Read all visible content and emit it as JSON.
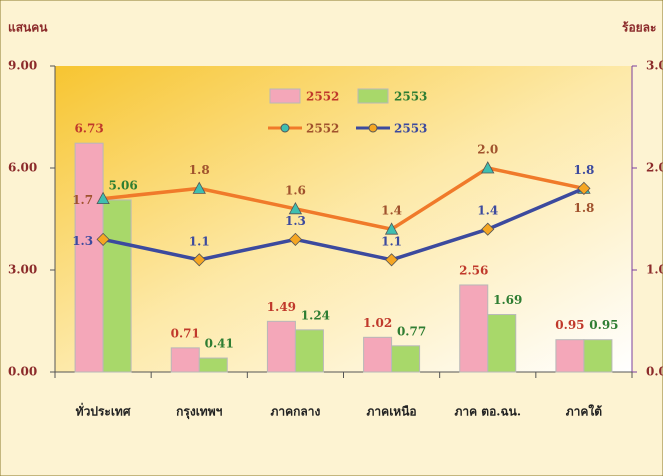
{
  "chart_data": {
    "type": "bar-line",
    "ylabel": "แสนคน",
    "y2label": "ร้อยละ",
    "categories": [
      "ทั่วประเทศ",
      "กรุงเทพฯ",
      "ภาคกลาง",
      "ภาคเหนือ",
      "ภาค ตอ.ฉน.",
      "ภาคใต้"
    ],
    "series": [
      {
        "name": "2552",
        "type": "bar",
        "color": "#f4a7b9",
        "label_color": "#c0392b",
        "values": [
          6.73,
          0.71,
          1.49,
          1.02,
          2.56,
          0.95
        ]
      },
      {
        "name": "2553",
        "type": "bar",
        "color": "#a8d86a",
        "label_color": "#2e7d32",
        "values": [
          5.06,
          0.41,
          1.24,
          0.77,
          1.69,
          0.95
        ]
      },
      {
        "name": "2552",
        "type": "line",
        "axis": "y2",
        "color": "#f07a2a",
        "marker": "triangle",
        "marker_color": "#3fbfb0",
        "label_color": "#a0522d",
        "values": [
          1.7,
          1.8,
          1.6,
          1.4,
          2.0,
          1.8
        ],
        "value_labels": [
          "1.7",
          "1.8",
          "1.6",
          "1.4",
          "2.0",
          "1.8"
        ]
      },
      {
        "name": "2553",
        "type": "line",
        "axis": "y2",
        "color": "#3c4a9e",
        "marker": "diamond",
        "marker_color": "#f5a623",
        "label_color": "#3c4a9e",
        "values": [
          1.3,
          1.1,
          1.3,
          1.1,
          1.4,
          1.8
        ],
        "value_labels": [
          "1.3",
          "1.1",
          "1.3",
          "1.1",
          "1.4",
          "1.8"
        ]
      }
    ],
    "ylim": [
      0,
      9
    ],
    "yticks": [
      {
        "value": 0,
        "label": "0.00"
      },
      {
        "value": 3,
        "label": "3.00"
      },
      {
        "value": 6,
        "label": "6.00"
      },
      {
        "value": 9,
        "label": "9.00"
      }
    ],
    "y2lim": [
      0,
      3
    ],
    "y2ticks": [
      {
        "value": 0,
        "label": "0.0"
      },
      {
        "value": 1,
        "label": "1.0"
      },
      {
        "value": 2,
        "label": "2.0"
      },
      {
        "value": 3,
        "label": "3.0"
      }
    ]
  }
}
